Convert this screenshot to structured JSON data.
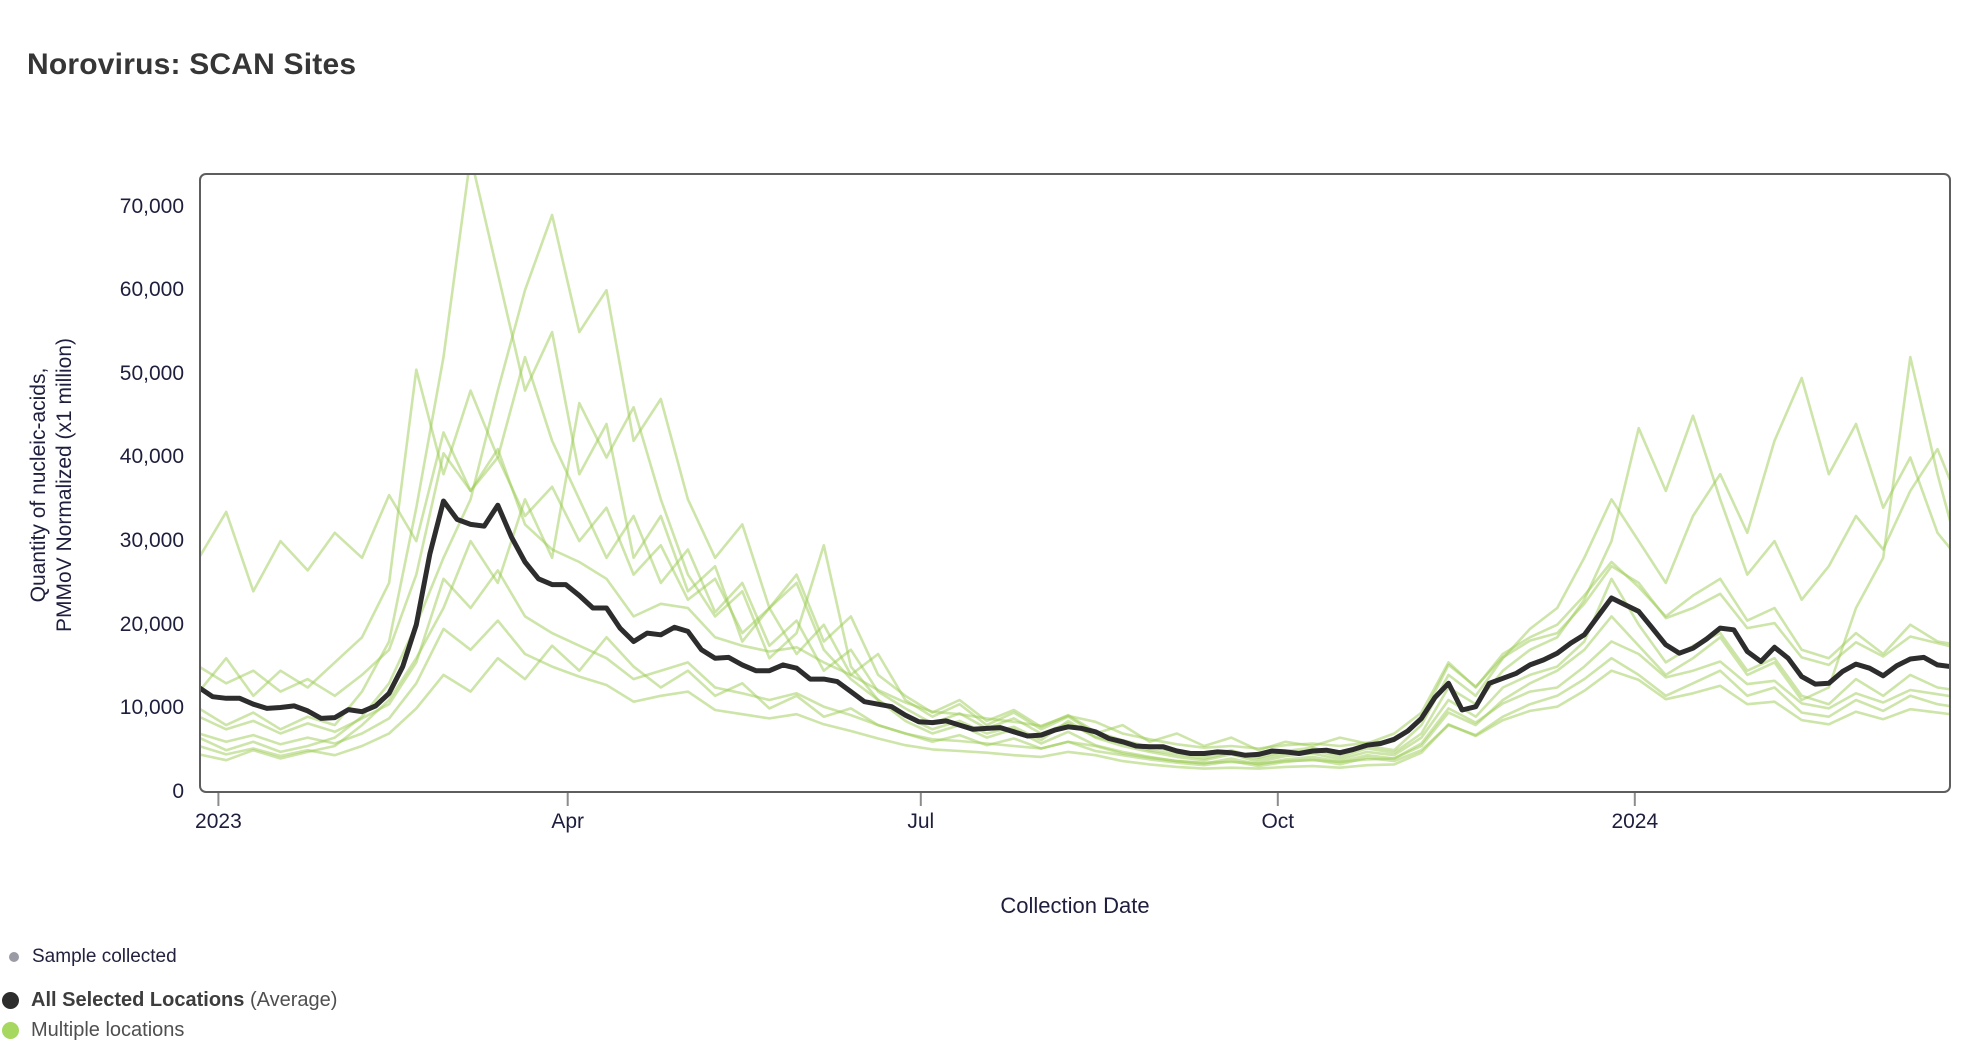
{
  "page": {
    "title": "Norovirus: SCAN Sites",
    "background": "#ffffff"
  },
  "chart_data": {
    "type": "line",
    "title": "Norovirus: SCAN Sites",
    "xlabel": "Collection Date",
    "ylabel": "Quantity of nucleic-acids, PMMoV Normalized (x1 million)",
    "ylabel_lines": [
      "Quantity of nucleic-acids,",
      "PMMoV Normalized (x1 million)"
    ],
    "grid": false,
    "legend_position": "bottom-left",
    "x_start_date": "2022-12-27",
    "x_domain_days": [
      0,
      452
    ],
    "ylim": [
      0,
      73900
    ],
    "y_ticks": [
      {
        "value": 0,
        "label": "0"
      },
      {
        "value": 10000,
        "label": "10,000"
      },
      {
        "value": 20000,
        "label": "20,000"
      },
      {
        "value": 30000,
        "label": "30,000"
      },
      {
        "value": 40000,
        "label": "40,000"
      },
      {
        "value": 50000,
        "label": "50,000"
      },
      {
        "value": 60000,
        "label": "60,000"
      },
      {
        "value": 70000,
        "label": "70,000"
      }
    ],
    "x_ticks": [
      {
        "day": 5,
        "label": "2023"
      },
      {
        "day": 95,
        "label": "Apr"
      },
      {
        "day": 186,
        "label": "Jul"
      },
      {
        "day": 278,
        "label": "Oct"
      },
      {
        "day": 370,
        "label": "2024"
      }
    ],
    "average_series": {
      "name": "All Selected Locations (Average)",
      "color": "#2d2d2d",
      "line_width": 5,
      "step_days": 3.5,
      "values": [
        12500,
        11400,
        11200,
        11200,
        10500,
        10000,
        10100,
        10300,
        9700,
        8800,
        8900,
        9850,
        9600,
        10300,
        11800,
        15000,
        20000,
        28500,
        34800,
        32600,
        32000,
        31800,
        34300,
        30500,
        27500,
        25500,
        24800,
        24800,
        23500,
        22000,
        22000,
        19600,
        18000,
        19000,
        18800,
        19700,
        19200,
        17000,
        16000,
        16100,
        15200,
        14500,
        14500,
        15200,
        14800,
        13500,
        13500,
        13200,
        12000,
        10800,
        10500,
        10200,
        9200,
        8400,
        8300,
        8500,
        8000,
        7500,
        7600,
        7700,
        7200,
        6700,
        6800,
        7400,
        7800,
        7600,
        7200,
        6400,
        6000,
        5500,
        5400,
        5400,
        4900,
        4600,
        4600,
        4800,
        4700,
        4400,
        4500,
        4900,
        4800,
        4600,
        4900,
        5000,
        4700,
        5100,
        5600,
        5800,
        6300,
        7300,
        8800,
        11300,
        13000,
        9800,
        10200,
        13000,
        13600,
        14200,
        15200,
        15800,
        16600,
        17800,
        18800,
        21000,
        23200,
        22400,
        21600,
        19600,
        17600,
        16600,
        17200,
        18300,
        19600,
        19400,
        16800,
        15600,
        17300,
        16000,
        13800,
        12900,
        13000,
        14400,
        15300,
        14800,
        13900,
        15100,
        15900,
        16100,
        15200,
        15000,
        14500
      ]
    },
    "site_series": {
      "name": "Multiple locations",
      "color": "#9ccb52",
      "opacity": 0.5,
      "line_width": 2.6,
      "step_days": 7,
      "series": [
        [
          28000,
          33500,
          24000,
          30000,
          26500,
          31000,
          28000,
          35500,
          30000,
          43000,
          36000,
          40000,
          33000,
          36500,
          30000,
          34000,
          26000,
          29500,
          23000,
          25500,
          19000,
          22000,
          16500,
          20000,
          14000,
          16500,
          11000,
          9000,
          10500,
          8000,
          9500,
          7500,
          9000,
          7000,
          8000,
          6000,
          7000,
          5500,
          6500,
          5000,
          6000,
          5500,
          6500,
          5800,
          7000,
          9500,
          15500,
          12500,
          16500,
          18500,
          20000,
          23500,
          27500,
          24500,
          21000,
          23500,
          25500,
          20500,
          22000,
          17000,
          16000,
          19000,
          16500,
          20000,
          18000,
          17500
        ],
        [
          10000,
          8000,
          9500,
          7500,
          9000,
          8000,
          12000,
          18000,
          34000,
          52000,
          76000,
          62000,
          48000,
          55000,
          38000,
          44000,
          28000,
          33000,
          24000,
          27000,
          18000,
          22000,
          25000,
          17000,
          13500,
          11000,
          9000,
          7500,
          8500,
          7000,
          7800,
          6200,
          8500,
          6500,
          5500,
          4800,
          4200,
          3800,
          4500,
          3600,
          4300,
          4600,
          3900,
          4800,
          4400,
          6500,
          11000,
          9000,
          12500,
          14000,
          15000,
          18000,
          25500,
          20000,
          15500,
          17500,
          19000,
          14500,
          16000,
          11500,
          10500,
          13500,
          11500,
          14000,
          12500,
          12000
        ],
        [
          6500,
          5000,
          6000,
          4800,
          5500,
          6500,
          9000,
          13000,
          20000,
          28000,
          35000,
          48000,
          60000,
          69000,
          55000,
          60000,
          42000,
          47000,
          35000,
          28000,
          32000,
          22000,
          26000,
          18000,
          21000,
          14000,
          11500,
          9500,
          11000,
          8500,
          9800,
          7800,
          9200,
          7200,
          6200,
          5400,
          4800,
          4300,
          5000,
          4100,
          4900,
          5300,
          4500,
          5500,
          5000,
          8000,
          14000,
          11500,
          16000,
          19500,
          22000,
          28000,
          35000,
          30000,
          25000,
          33000,
          38000,
          31000,
          42000,
          49500,
          38000,
          44000,
          34000,
          40000,
          31000,
          27000
        ],
        [
          4500,
          3800,
          5000,
          4000,
          4800,
          5500,
          8000,
          11000,
          16000,
          22000,
          30000,
          25000,
          35000,
          28000,
          46500,
          40000,
          46000,
          35000,
          26000,
          21000,
          24000,
          16000,
          19000,
          29500,
          15000,
          11000,
          8500,
          7000,
          8000,
          6500,
          7500,
          5800,
          7200,
          5600,
          4800,
          4200,
          3700,
          3400,
          4000,
          3300,
          3900,
          4200,
          3600,
          4400,
          4000,
          5500,
          9500,
          8000,
          11000,
          13000,
          14500,
          17000,
          21000,
          17500,
          14000,
          16000,
          18500,
          14000,
          15500,
          11000,
          12500,
          22000,
          28000,
          52000,
          38000,
          26000
        ],
        [
          5500,
          4500,
          5200,
          4300,
          5000,
          4400,
          5500,
          7000,
          10000,
          14000,
          12000,
          16000,
          13500,
          17500,
          14500,
          18500,
          15000,
          12500,
          14500,
          11500,
          13000,
          10000,
          11500,
          9000,
          10000,
          8000,
          7000,
          6000,
          6800,
          5600,
          6400,
          5200,
          6000,
          4900,
          4400,
          3900,
          3500,
          3200,
          3700,
          3100,
          3600,
          3900,
          3300,
          4100,
          3700,
          5000,
          8000,
          6800,
          9000,
          10500,
          11500,
          13500,
          16000,
          14000,
          11500,
          13000,
          14500,
          11500,
          12500,
          9500,
          9000,
          11000,
          9700,
          11500,
          10500,
          10000
        ],
        [
          12000,
          16000,
          11500,
          14500,
          12500,
          15500,
          18500,
          25000,
          50500,
          38000,
          48000,
          40000,
          52000,
          42000,
          35000,
          28000,
          33000,
          25000,
          29000,
          21500,
          25000,
          17500,
          20500,
          14500,
          17000,
          12000,
          10000,
          8200,
          9400,
          7600,
          8800,
          7000,
          8200,
          6600,
          5800,
          5000,
          4500,
          4000,
          4700,
          3900,
          4600,
          5000,
          4200,
          5200,
          4700,
          7000,
          12500,
          10500,
          14500,
          17000,
          18500,
          23000,
          30000,
          43500,
          36000,
          45000,
          35000,
          26000,
          30000,
          23000,
          27000,
          33000,
          29000,
          36000,
          41000,
          33000
        ],
        [
          9000,
          7500,
          8500,
          7000,
          8200,
          7200,
          8800,
          10500,
          15500,
          25500,
          22000,
          26500,
          21000,
          19000,
          17500,
          16000,
          13500,
          14500,
          15500,
          12500,
          11800,
          11000,
          11800,
          10200,
          9200,
          8000,
          7000,
          6300,
          6100,
          5800,
          5500,
          5200,
          6000,
          5500,
          4600,
          4100,
          3700,
          3500,
          3600,
          3400,
          3700,
          3800,
          3600,
          3900,
          4000,
          5800,
          10000,
          8300,
          10600,
          12000,
          12500,
          15000,
          18000,
          16500,
          13700,
          14500,
          15600,
          12900,
          13300,
          10600,
          10000,
          11800,
          10700,
          12200,
          11700,
          11200
        ],
        [
          15000,
          13000,
          14500,
          12000,
          13500,
          11500,
          14000,
          17000,
          26000,
          40500,
          36000,
          41000,
          32000,
          29000,
          27500,
          25500,
          21000,
          22500,
          22000,
          18500,
          17500,
          16800,
          17300,
          15500,
          14000,
          12200,
          10700,
          9600,
          9300,
          8800,
          8400,
          7900,
          9100,
          8400,
          7000,
          6300,
          5700,
          5300,
          5500,
          5200,
          5600,
          5800,
          5500,
          5900,
          6100,
          8800,
          15200,
          12600,
          16100,
          18100,
          19000,
          22500,
          27000,
          25000,
          20800,
          22000,
          23700,
          19600,
          20200,
          16100,
          15200,
          17900,
          16200,
          18600,
          17800,
          17000
        ],
        [
          7000,
          6000,
          6800,
          5700,
          6500,
          5800,
          7000,
          8800,
          13000,
          19500,
          17000,
          20500,
          16500,
          15000,
          13800,
          12800,
          10800,
          11500,
          12000,
          9800,
          9300,
          8800,
          9300,
          8100,
          7300,
          6400,
          5600,
          5100,
          4900,
          4700,
          4400,
          4200,
          4800,
          4400,
          3700,
          3300,
          3000,
          2800,
          2900,
          2800,
          3000,
          3100,
          2900,
          3200,
          3300,
          4700,
          8100,
          6700,
          8600,
          9700,
          10200,
          12100,
          14500,
          13400,
          11100,
          11800,
          12700,
          10500,
          10800,
          8600,
          8100,
          9600,
          8700,
          9900,
          9500,
          9100
        ]
      ]
    },
    "style": {
      "plot_border_color": "#5e5e5e",
      "tick_mark_color": "#8c8c8c",
      "axis_text_color": "#1e1e3d"
    }
  },
  "legend": {
    "sample": {
      "label": "Sample collected",
      "dot_color": "#9b9ba6"
    },
    "average": {
      "label_bold": "All Selected Locations",
      "label_suffix": " (Average)",
      "dot_color": "#2d2d2d"
    },
    "sites": {
      "label": "Multiple locations",
      "dot_color": "#a6d75e"
    }
  }
}
